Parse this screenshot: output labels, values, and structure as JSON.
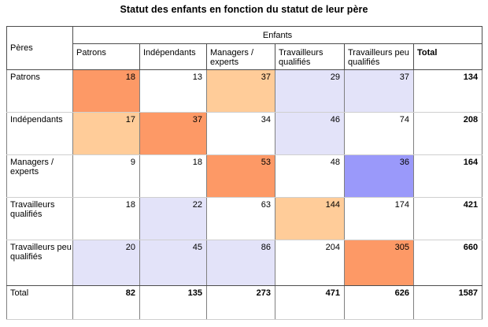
{
  "chart_data": {
    "type": "table",
    "title": "Statut des enfants en fonction du statut de leur père",
    "row_axis_label": "Pères",
    "column_axis_label": "Enfants",
    "columns": [
      {
        "label": "Patrons",
        "bold": false
      },
      {
        "label": "Indépendants",
        "bold": false
      },
      {
        "label": "Managers /\nexperts",
        "bold": false
      },
      {
        "label": "Travailleurs\nqualifiés",
        "bold": false
      },
      {
        "label": "Travailleurs peu\nqualifiés",
        "bold": false
      },
      {
        "label": "Total",
        "bold": true
      }
    ],
    "palette": {
      "strong_orange": "#fd9966",
      "light_orange": "#ffcc99",
      "light_purple": "#e3e3f9",
      "strong_purple": "#9a99fa",
      "none": "#ffffff"
    },
    "rows": [
      {
        "label": "Patrons",
        "bold": false,
        "values": [
          18,
          13,
          37,
          29,
          37,
          134
        ],
        "fills": [
          "strong_orange",
          "none",
          "light_orange",
          "light_purple",
          "light_purple",
          "none"
        ]
      },
      {
        "label": "Indépendants",
        "bold": false,
        "values": [
          17,
          37,
          34,
          46,
          74,
          208
        ],
        "fills": [
          "light_orange",
          "strong_orange",
          "none",
          "light_purple",
          "none",
          "none"
        ]
      },
      {
        "label": "Managers /\nexperts",
        "bold": false,
        "values": [
          9,
          18,
          53,
          48,
          36,
          164
        ],
        "fills": [
          "none",
          "none",
          "strong_orange",
          "none",
          "strong_purple",
          "none"
        ]
      },
      {
        "label": "Travailleurs\nqualifiés",
        "bold": false,
        "values": [
          18,
          22,
          63,
          144,
          174,
          421
        ],
        "fills": [
          "none",
          "light_purple",
          "none",
          "light_orange",
          "none",
          "none"
        ]
      },
      {
        "label": "Travailleurs peu\nqualifiés",
        "bold": false,
        "values": [
          20,
          45,
          86,
          204,
          305,
          660
        ],
        "fills": [
          "light_purple",
          "light_purple",
          "light_purple",
          "none",
          "strong_orange",
          "none"
        ]
      },
      {
        "label": "Total",
        "bold": true,
        "values": [
          82,
          135,
          273,
          471,
          626,
          1587
        ],
        "fills": [
          "none",
          "none",
          "none",
          "none",
          "none",
          "none"
        ]
      }
    ]
  }
}
